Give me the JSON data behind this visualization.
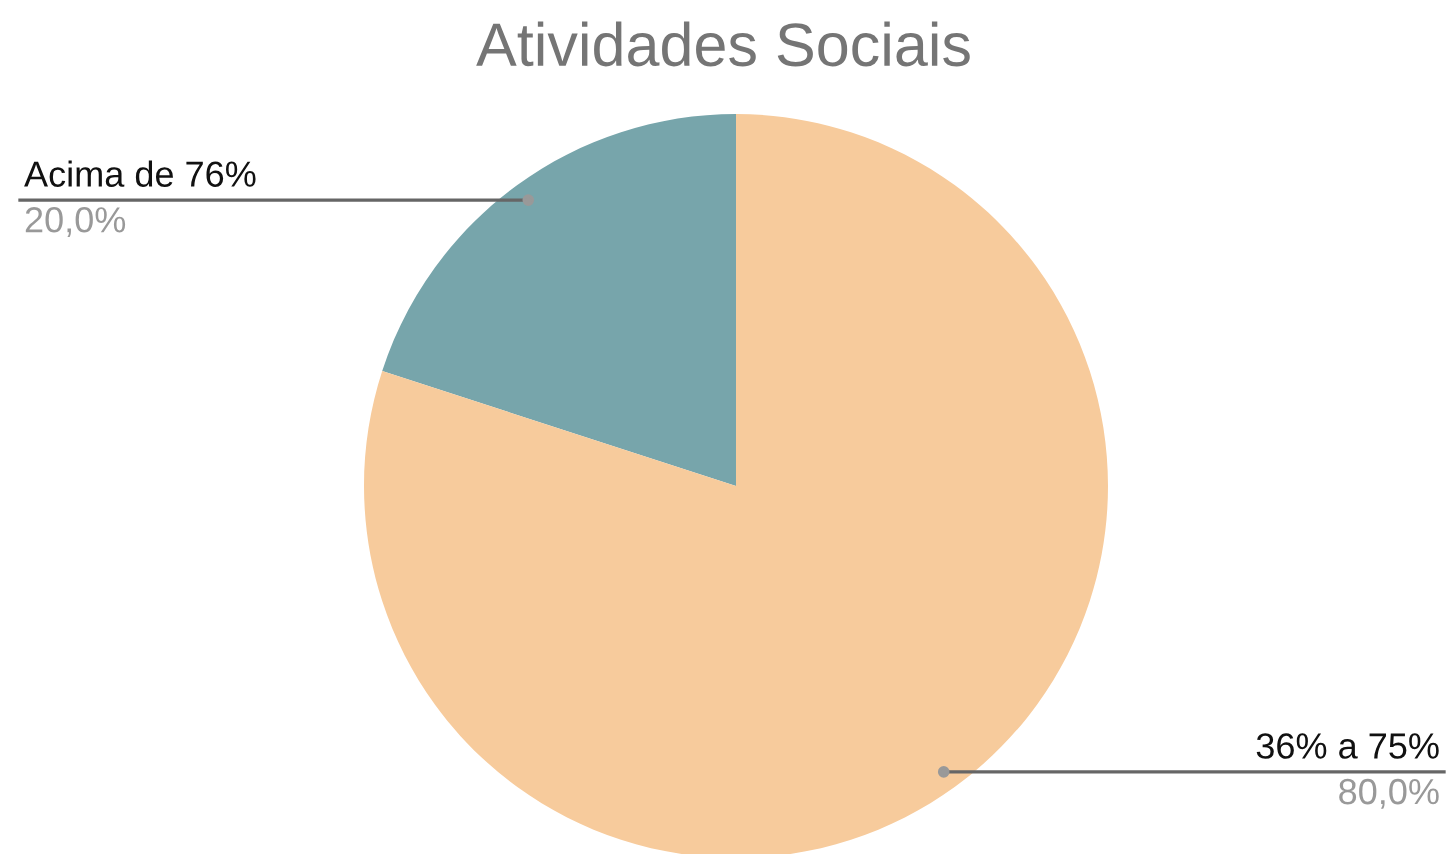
{
  "chart_data": {
    "type": "pie",
    "title": "Atividades Sociais",
    "categories": [
      "Acima de 76%",
      "36% a 75%"
    ],
    "values": [
      20,
      80
    ],
    "value_labels": [
      "20,0%",
      "80,0%"
    ],
    "colors": [
      "#77a5ab",
      "#f7cb9c"
    ],
    "legend": false
  }
}
